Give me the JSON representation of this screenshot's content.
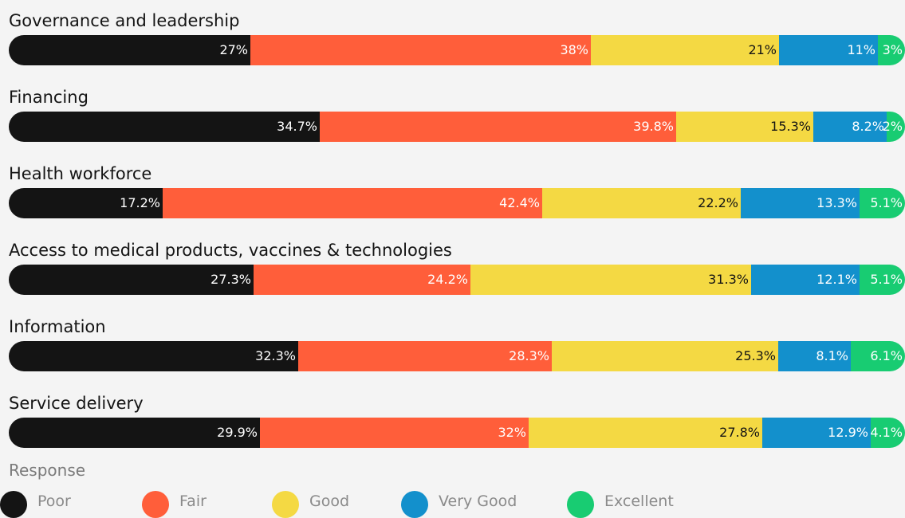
{
  "chart_data": {
    "type": "bar",
    "orientation": "horizontal",
    "stacked": true,
    "normalized_percent": true,
    "categories": [
      "Governance and leadership",
      "Financing",
      "Health workforce",
      "Access to medical products, vaccines & technologies",
      "Information",
      "Service delivery"
    ],
    "series": [
      {
        "name": "Poor",
        "color": "#141414",
        "label_color": "#ffffff",
        "values": [
          27,
          34.7,
          17.2,
          27.3,
          32.3,
          29.9
        ],
        "labels": [
          "27%",
          "34.7%",
          "17.2%",
          "27.3%",
          "32.3%",
          "29.9%"
        ]
      },
      {
        "name": "Fair",
        "color": "#ff5e3a",
        "label_color": "#ffffff",
        "values": [
          38,
          39.8,
          42.4,
          24.2,
          28.3,
          32
        ],
        "labels": [
          "38%",
          "39.8%",
          "42.4%",
          "24.2%",
          "28.3%",
          "32%"
        ]
      },
      {
        "name": "Good",
        "color": "#f4d943",
        "label_color": "#141414",
        "values": [
          21,
          15.3,
          22.2,
          31.3,
          25.3,
          27.8
        ],
        "labels": [
          "21%",
          "15.3%",
          "22.2%",
          "31.3%",
          "25.3%",
          "27.8%"
        ]
      },
      {
        "name": "Very Good",
        "color": "#1390cc",
        "label_color": "#ffffff",
        "values": [
          11,
          8.2,
          13.3,
          12.1,
          8.1,
          12.9
        ],
        "labels": [
          "11%",
          "8.2%",
          "13.3%",
          "12.1%",
          "8.1%",
          "12.9%"
        ]
      },
      {
        "name": "Excellent",
        "color": "#18cc72",
        "label_color": "#ffffff",
        "values": [
          3,
          2,
          5.1,
          5.1,
          6.1,
          4.1
        ],
        "labels": [
          "3%",
          "2%",
          "5.1%",
          "5.1%",
          "6.1%",
          "4.1%"
        ]
      }
    ],
    "legend": {
      "title": "Response",
      "position": "bottom-left"
    },
    "grid": false
  }
}
